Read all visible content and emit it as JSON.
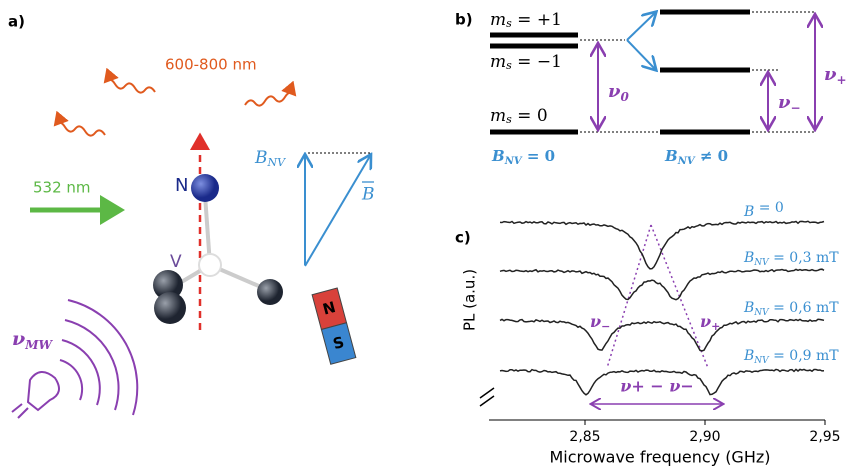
{
  "panel_a": {
    "label": "a)",
    "emission": "600-800 nm",
    "excitation": "532 nm",
    "nitrogen": "N",
    "vacancy": "V",
    "b_nv": "B",
    "b_nv_sub": "NV",
    "b_vec": "B",
    "magnet_n": "N",
    "magnet_s": "S",
    "microwave": "ν",
    "microwave_sub": "MW"
  },
  "panel_b": {
    "label": "b)",
    "m": "m",
    "m_sub": "s",
    "level_plus": " = +1",
    "level_minus": " = −1",
    "level_zero": " = 0",
    "field_zero": "B",
    "field_zero_sub": "NV",
    "field_zero_rest": " = 0",
    "field_nonzero": "B",
    "field_nonzero_sub": "NV",
    "field_nonzero_rest": " ≠ 0",
    "nu0": "ν",
    "nu0_sub": "0",
    "nu_minus": "ν",
    "nu_minus_sub": "−",
    "nu_plus": "ν",
    "nu_plus_sub": "+"
  },
  "panel_c": {
    "label": "c)",
    "y_label": "PL (a.u.)",
    "x_label": "Microwave frequency  (GHz)",
    "xlim": [
      2.81,
      2.95
    ],
    "xticks": [
      {
        "value": 2.85,
        "label": "2,85"
      },
      {
        "value": 2.9,
        "label": "2,90"
      },
      {
        "value": 2.95,
        "label": "2,95"
      }
    ],
    "curve_labels": [
      {
        "symbol": "B",
        "sub": "",
        "rest": " = 0"
      },
      {
        "symbol": "B",
        "sub": "NV",
        "rest": " = 0,3 mT"
      },
      {
        "symbol": "B",
        "sub": "NV",
        "rest": " = 0,6 mT"
      },
      {
        "symbol": "B",
        "sub": "NV",
        "rest": " = 0,9 mT"
      }
    ],
    "nu_minus": "ν",
    "nu_minus_sub": "−",
    "nu_plus": "ν",
    "nu_plus_sub": "+",
    "splitting": "ν+ − ν−"
  }
}
